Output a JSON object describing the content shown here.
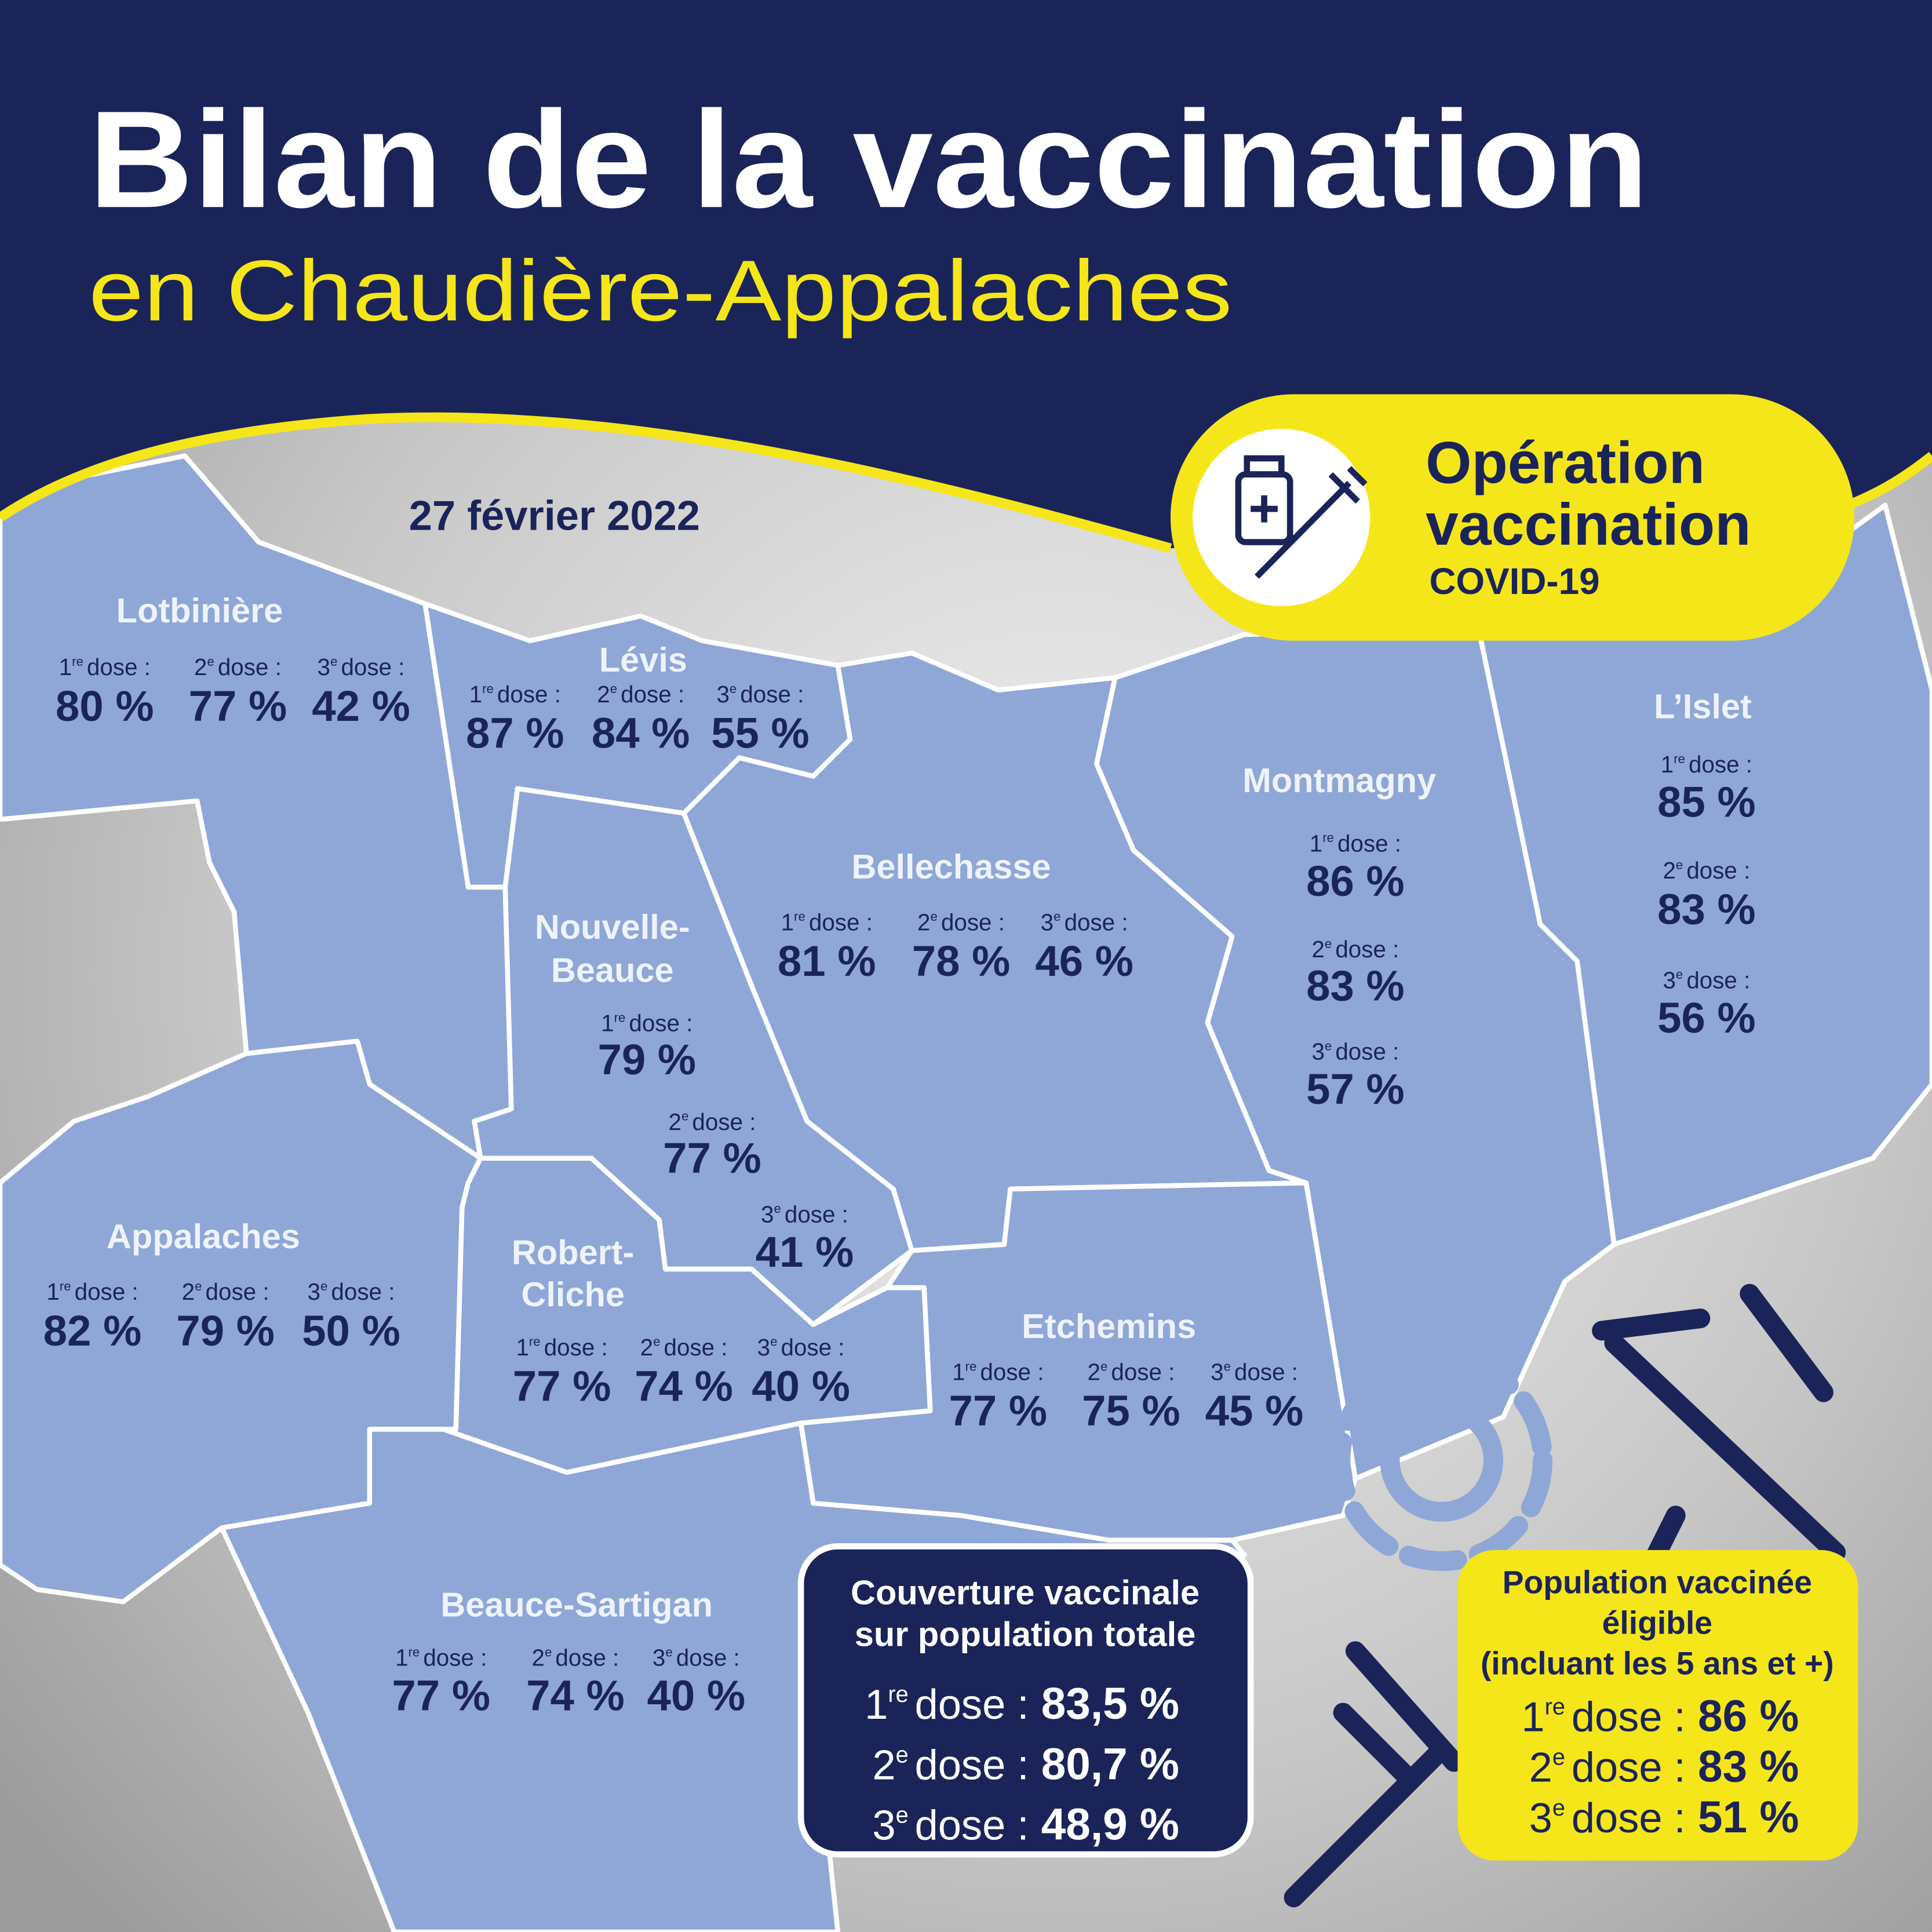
{
  "header": {
    "title": "Bilan de la vaccination",
    "subtitle": "en Chaudière-Appalaches"
  },
  "date": "27 février 2022",
  "badge": {
    "lines": [
      "Opération",
      "vaccination"
    ],
    "tag": "COVID-19"
  },
  "regions": [
    {
      "name": [
        "Lotbinière"
      ],
      "doses": [
        {
          "ordinal": "1",
          "suffix": "re",
          "label": "dose :",
          "value": "80 %"
        },
        {
          "ordinal": "2",
          "suffix": "e",
          "label": "dose :",
          "value": "77 %"
        },
        {
          "ordinal": "3",
          "suffix": "e",
          "label": "dose :",
          "value": "42 %"
        }
      ]
    },
    {
      "name": [
        "Lévis"
      ],
      "doses": [
        {
          "ordinal": "1",
          "suffix": "re",
          "label": "dose :",
          "value": "87 %"
        },
        {
          "ordinal": "2",
          "suffix": "e",
          "label": "dose :",
          "value": "84 %"
        },
        {
          "ordinal": "3",
          "suffix": "e",
          "label": "dose :",
          "value": "55 %"
        }
      ]
    },
    {
      "name": [
        "Bellechasse"
      ],
      "doses": [
        {
          "ordinal": "1",
          "suffix": "re",
          "label": "dose :",
          "value": "81 %"
        },
        {
          "ordinal": "2",
          "suffix": "e",
          "label": "dose :",
          "value": "78 %"
        },
        {
          "ordinal": "3",
          "suffix": "e",
          "label": "dose :",
          "value": "46 %"
        }
      ]
    },
    {
      "name": [
        "Montmagny"
      ],
      "doses": [
        {
          "ordinal": "1",
          "suffix": "re",
          "label": "dose :",
          "value": "86 %"
        },
        {
          "ordinal": "2",
          "suffix": "e",
          "label": "dose :",
          "value": "83 %"
        },
        {
          "ordinal": "3",
          "suffix": "e",
          "label": "dose :",
          "value": "57 %"
        }
      ]
    },
    {
      "name": [
        "L’Islet"
      ],
      "doses": [
        {
          "ordinal": "1",
          "suffix": "re",
          "label": "dose :",
          "value": "85 %"
        },
        {
          "ordinal": "2",
          "suffix": "e",
          "label": "dose :",
          "value": "83 %"
        },
        {
          "ordinal": "3",
          "suffix": "e",
          "label": "dose :",
          "value": "56 %"
        }
      ]
    },
    {
      "name": [
        "Nouvelle-",
        "Beauce"
      ],
      "doses": [
        {
          "ordinal": "1",
          "suffix": "re",
          "label": "dose :",
          "value": "79 %"
        },
        {
          "ordinal": "2",
          "suffix": "e",
          "label": "dose :",
          "value": "77 %"
        },
        {
          "ordinal": "3",
          "suffix": "e",
          "label": "dose :",
          "value": "41 %"
        }
      ]
    },
    {
      "name": [
        "Appalaches"
      ],
      "doses": [
        {
          "ordinal": "1",
          "suffix": "re",
          "label": "dose :",
          "value": "82 %"
        },
        {
          "ordinal": "2",
          "suffix": "e",
          "label": "dose :",
          "value": "79 %"
        },
        {
          "ordinal": "3",
          "suffix": "e",
          "label": "dose :",
          "value": "50 %"
        }
      ]
    },
    {
      "name": [
        "Robert-",
        "Cliche"
      ],
      "doses": [
        {
          "ordinal": "1",
          "suffix": "re",
          "label": "dose :",
          "value": "77 %"
        },
        {
          "ordinal": "2",
          "suffix": "e",
          "label": "dose :",
          "value": "74 %"
        },
        {
          "ordinal": "3",
          "suffix": "e",
          "label": "dose :",
          "value": "40 %"
        }
      ]
    },
    {
      "name": [
        "Etchemins"
      ],
      "doses": [
        {
          "ordinal": "1",
          "suffix": "re",
          "label": "dose :",
          "value": "77 %"
        },
        {
          "ordinal": "2",
          "suffix": "e",
          "label": "dose :",
          "value": "75 %"
        },
        {
          "ordinal": "3",
          "suffix": "e",
          "label": "dose :",
          "value": "45 %"
        }
      ]
    },
    {
      "name": [
        "Beauce-Sartigan"
      ],
      "doses": [
        {
          "ordinal": "1",
          "suffix": "re",
          "label": "dose :",
          "value": "77 %"
        },
        {
          "ordinal": "2",
          "suffix": "e",
          "label": "dose :",
          "value": "74 %"
        },
        {
          "ordinal": "3",
          "suffix": "e",
          "label": "dose :",
          "value": "40 %"
        }
      ]
    }
  ],
  "summary_total": {
    "title": [
      "Couverture vaccinale",
      "sur population totale"
    ],
    "doses": [
      {
        "ordinal": "1",
        "suffix": "re",
        "label": "dose :",
        "value": "83,5 %"
      },
      {
        "ordinal": "2",
        "suffix": "e",
        "label": "dose :",
        "value": "80,7 %"
      },
      {
        "ordinal": "3",
        "suffix": "e",
        "label": "dose :",
        "value": "48,9 %"
      }
    ]
  },
  "summary_eligible": {
    "title": [
      "Population vaccinée",
      "éligible",
      "(incluant les 5 ans et +)"
    ],
    "doses": [
      {
        "ordinal": "1",
        "suffix": "re",
        "label": "dose :",
        "value": "86 %"
      },
      {
        "ordinal": "2",
        "suffix": "e",
        "label": "dose :",
        "value": "83 %"
      },
      {
        "ordinal": "3",
        "suffix": "e",
        "label": "dose :",
        "value": "51 %"
      }
    ]
  }
}
